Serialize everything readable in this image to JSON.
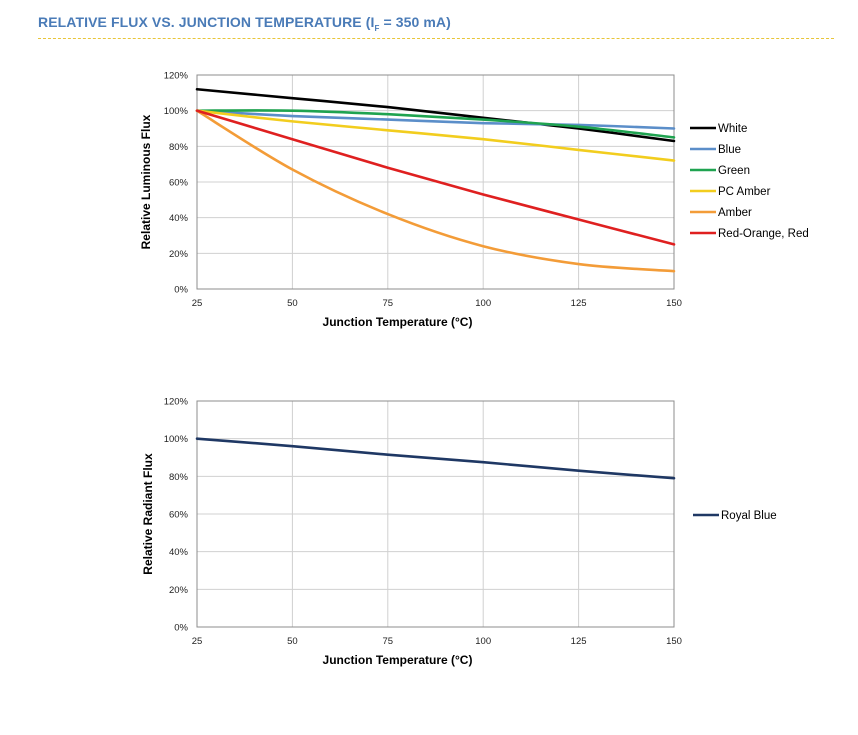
{
  "header": {
    "title_main": "RELATIVE FLUX VS. JUNCTION TEMPERATURE (I",
    "title_sub": "F",
    "title_rest": " = 350 mA)"
  },
  "chart_data": [
    {
      "type": "line",
      "xlabel": "Junction Temperature (°C)",
      "ylabel": "Relative Luminous Flux",
      "xlim": [
        25,
        150
      ],
      "ylim": [
        0,
        120
      ],
      "x_ticks": [
        "25",
        "50",
        "75",
        "100",
        "125",
        "150"
      ],
      "y_ticks": [
        "0%",
        "20%",
        "40%",
        "60%",
        "80%",
        "100%",
        "120%"
      ],
      "grid": true,
      "legend_position": "right",
      "x": [
        25,
        50,
        75,
        100,
        125,
        150
      ],
      "series": [
        {
          "name": "White",
          "color": "#000000",
          "values": [
            112,
            107,
            102,
            96,
            90,
            83
          ]
        },
        {
          "name": "Blue",
          "color": "#5b8ec9",
          "values": [
            100,
            97,
            95,
            93,
            92,
            90
          ]
        },
        {
          "name": "Green",
          "color": "#1fa350",
          "values": [
            100,
            100,
            98,
            95,
            91,
            85
          ]
        },
        {
          "name": "PC Amber",
          "color": "#f2cd1e",
          "values": [
            100,
            94,
            89,
            84,
            78,
            72
          ]
        },
        {
          "name": "Amber",
          "color": "#f39c38",
          "values": [
            100,
            67,
            42,
            24,
            14,
            10
          ]
        },
        {
          "name": "Red-Orange, Red",
          "color": "#df2020",
          "values": [
            100,
            84,
            68,
            53,
            39,
            25
          ]
        }
      ]
    },
    {
      "type": "line",
      "xlabel": "Junction Temperature (°C)",
      "ylabel": "Relative Radiant Flux",
      "xlim": [
        25,
        150
      ],
      "ylim": [
        0,
        120
      ],
      "x_ticks": [
        "25",
        "50",
        "75",
        "100",
        "125",
        "150"
      ],
      "y_ticks": [
        "0%",
        "20%",
        "40%",
        "60%",
        "80%",
        "100%",
        "120%"
      ],
      "grid": true,
      "legend_position": "right",
      "x": [
        25,
        50,
        75,
        100,
        125,
        150
      ],
      "series": [
        {
          "name": "Royal Blue",
          "color": "#1f3864",
          "values": [
            100,
            96,
            91.5,
            87.5,
            83,
            79
          ]
        }
      ]
    }
  ]
}
